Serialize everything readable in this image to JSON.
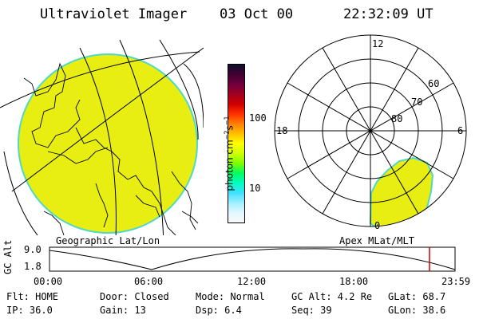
{
  "header": {
    "instrument": "Ultraviolet Imager",
    "date": "03 Oct 00",
    "time": "22:32:09 UT"
  },
  "colorbar": {
    "unit_label": "photon cm",
    "tick_100": "100",
    "tick_10": "10",
    "colors": [
      "#101030",
      "#400030",
      "#700040",
      "#a00020",
      "#d00000",
      "#ff3000",
      "#ff8000",
      "#ffc000",
      "#ffff00",
      "#d0ff00",
      "#80ff00",
      "#00ff60",
      "#00ffc0",
      "#40e0ff",
      "#a0f0ff",
      "#e0f8ff",
      "#f8f8f8"
    ]
  },
  "polar": {
    "label_12": "12",
    "label_18": "18",
    "label_6": "6",
    "label_0": "0",
    "label_60": "60",
    "label_70": "70",
    "label_80": "80"
  },
  "labels": {
    "left_projection": "Geographic Lat/Lon",
    "right_projection": "Apex MLat/MLT"
  },
  "altitude_plot": {
    "y_title": "GC Alt",
    "y_max": "9.0",
    "y_min": "1.8",
    "x_ticks": [
      "00:00",
      "06:00",
      "12:00",
      "18:00",
      "23:59"
    ]
  },
  "status": {
    "flt": "Flt: HOME",
    "ip": "IP: 36.0",
    "door": "Door: Closed",
    "gain": "Gain: 13",
    "mode": "Mode: Normal",
    "dsp": "Dsp:     6.4",
    "gc_alt": "GC Alt: 4.2 Re",
    "seq": "Seq: 39",
    "glat": "GLat:  68.7",
    "glon": "GLon:  38.6"
  },
  "colors": {
    "earth_fill": "#e8ee12",
    "earth_edge": "#4fd8c8",
    "marker": "#d00000"
  }
}
